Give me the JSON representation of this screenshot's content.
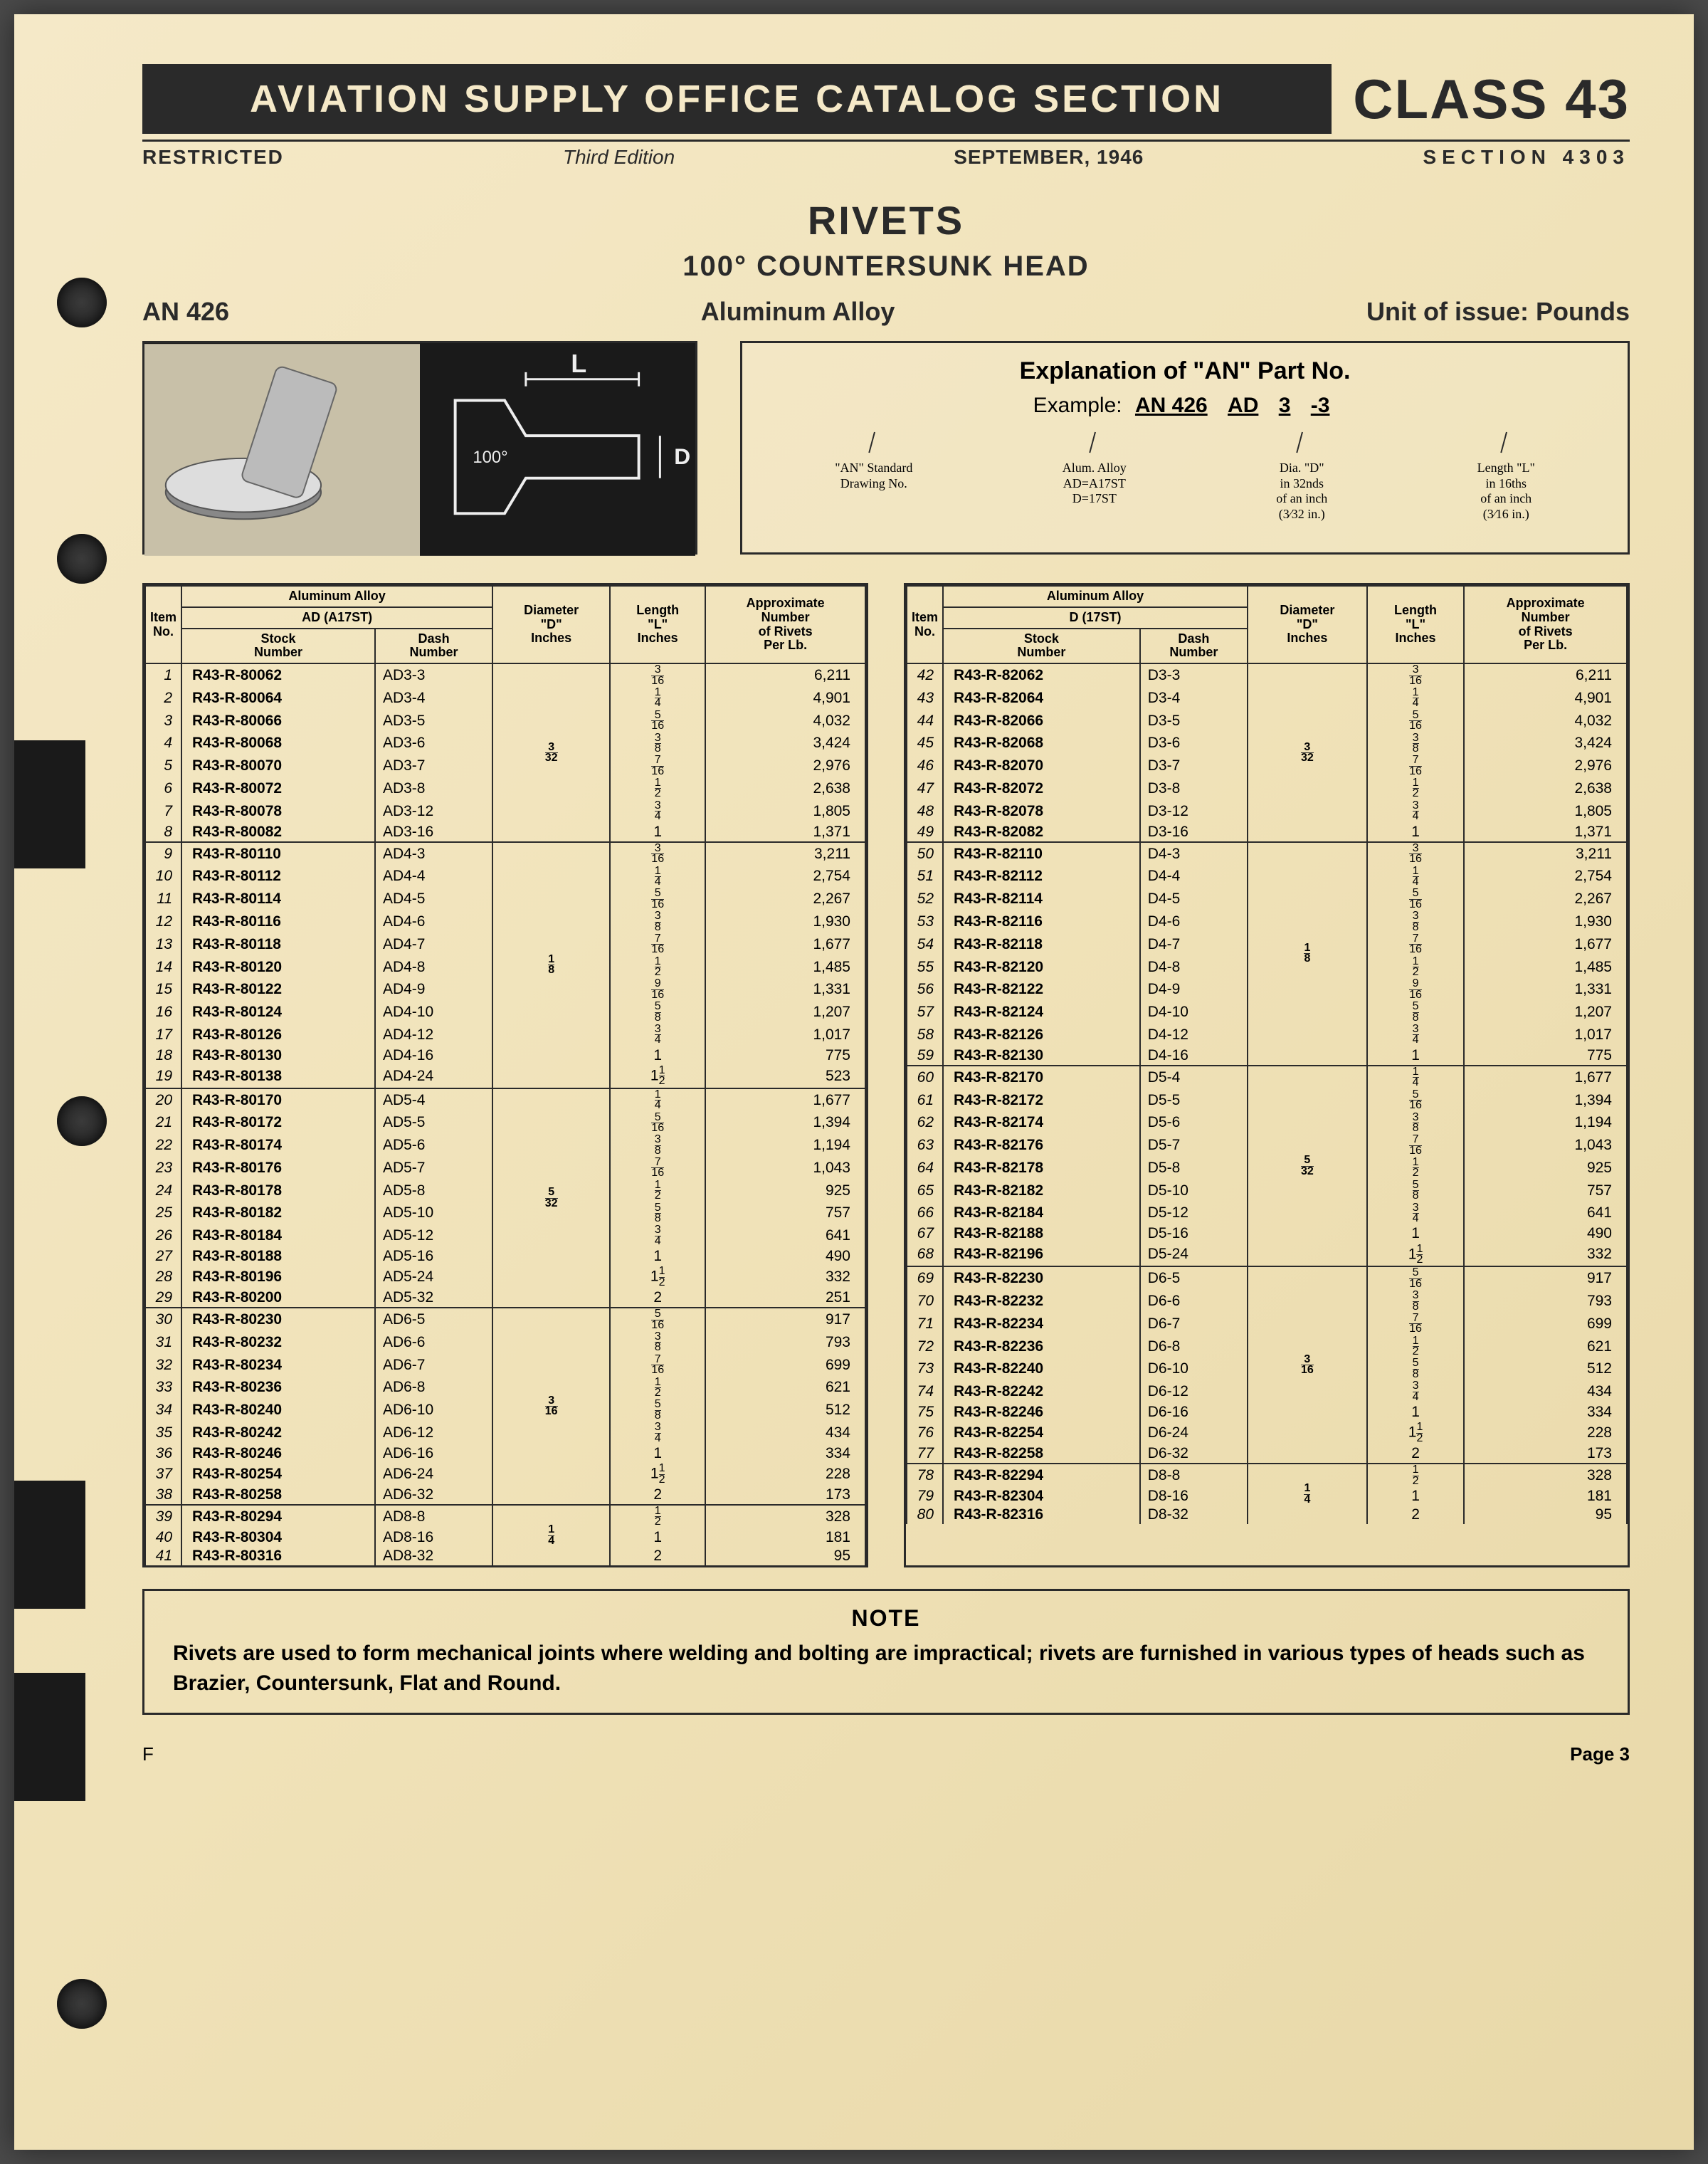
{
  "header": {
    "banner": "AVIATION  SUPPLY  OFFICE  CATALOG  SECTION",
    "class": "CLASS 43",
    "restricted": "RESTRICTED",
    "edition": "Third Edition",
    "date": "SEPTEMBER, 1946",
    "section": "SECTION 4303"
  },
  "title": {
    "main": "RIVETS",
    "sub": "100° COUNTERSUNK HEAD"
  },
  "info": {
    "an": "AN 426",
    "material": "Aluminum Alloy",
    "unit": "Unit of issue: Pounds"
  },
  "explain": {
    "title": "Explanation of \"AN\" Part No.",
    "example_label": "Example:",
    "parts": [
      "AN 426",
      "AD",
      "3",
      "-3"
    ],
    "desc": [
      "\"AN\" Standard\nDrawing No.",
      "Alum. Alloy\nAD=A17ST\nD=17ST",
      "Dia. \"D\"\nin 32nds\nof an inch\n(3⁄32 in.)",
      "Length \"L\"\nin 16ths\nof an inch\n(3⁄16 in.)"
    ]
  },
  "columns": {
    "item": "Item\nNo.",
    "alloy": "Aluminum Alloy",
    "alloy_left": "AD (A17ST)",
    "alloy_right": "D (17ST)",
    "stock": "Stock\nNumber",
    "dash": "Dash\nNumber",
    "dia": "Diameter\n\"D\"\nInches",
    "len": "Length\n\"L\"\nInches",
    "rivets": "Approximate\nNumber\nof Rivets\nPer Lb."
  },
  "left": [
    {
      "dia": "3/32",
      "rows": [
        {
          "i": "1",
          "s": "R43-R-80062",
          "d": "AD3-3",
          "l": "3/16",
          "r": "6,211"
        },
        {
          "i": "2",
          "s": "R43-R-80064",
          "d": "AD3-4",
          "l": "1/4",
          "r": "4,901"
        },
        {
          "i": "3",
          "s": "R43-R-80066",
          "d": "AD3-5",
          "l": "5/16",
          "r": "4,032"
        },
        {
          "i": "4",
          "s": "R43-R-80068",
          "d": "AD3-6",
          "l": "3/8",
          "r": "3,424"
        },
        {
          "i": "5",
          "s": "R43-R-80070",
          "d": "AD3-7",
          "l": "7/16",
          "r": "2,976"
        },
        {
          "i": "6",
          "s": "R43-R-80072",
          "d": "AD3-8",
          "l": "1/2",
          "r": "2,638"
        },
        {
          "i": "7",
          "s": "R43-R-80078",
          "d": "AD3-12",
          "l": "3/4",
          "r": "1,805"
        },
        {
          "i": "8",
          "s": "R43-R-80082",
          "d": "AD3-16",
          "l": "1",
          "r": "1,371"
        }
      ]
    },
    {
      "dia": "1/8",
      "rows": [
        {
          "i": "9",
          "s": "R43-R-80110",
          "d": "AD4-3",
          "l": "3/16",
          "r": "3,211"
        },
        {
          "i": "10",
          "s": "R43-R-80112",
          "d": "AD4-4",
          "l": "1/4",
          "r": "2,754"
        },
        {
          "i": "11",
          "s": "R43-R-80114",
          "d": "AD4-5",
          "l": "5/16",
          "r": "2,267"
        },
        {
          "i": "12",
          "s": "R43-R-80116",
          "d": "AD4-6",
          "l": "3/8",
          "r": "1,930"
        },
        {
          "i": "13",
          "s": "R43-R-80118",
          "d": "AD4-7",
          "l": "7/16",
          "r": "1,677"
        },
        {
          "i": "14",
          "s": "R43-R-80120",
          "d": "AD4-8",
          "l": "1/2",
          "r": "1,485"
        },
        {
          "i": "15",
          "s": "R43-R-80122",
          "d": "AD4-9",
          "l": "9/16",
          "r": "1,331"
        },
        {
          "i": "16",
          "s": "R43-R-80124",
          "d": "AD4-10",
          "l": "5/8",
          "r": "1,207"
        },
        {
          "i": "17",
          "s": "R43-R-80126",
          "d": "AD4-12",
          "l": "3/4",
          "r": "1,017"
        },
        {
          "i": "18",
          "s": "R43-R-80130",
          "d": "AD4-16",
          "l": "1",
          "r": "775"
        },
        {
          "i": "19",
          "s": "R43-R-80138",
          "d": "AD4-24",
          "l": "1 1/2",
          "r": "523"
        }
      ]
    },
    {
      "dia": "5/32",
      "rows": [
        {
          "i": "20",
          "s": "R43-R-80170",
          "d": "AD5-4",
          "l": "1/4",
          "r": "1,677"
        },
        {
          "i": "21",
          "s": "R43-R-80172",
          "d": "AD5-5",
          "l": "5/16",
          "r": "1,394"
        },
        {
          "i": "22",
          "s": "R43-R-80174",
          "d": "AD5-6",
          "l": "3/8",
          "r": "1,194"
        },
        {
          "i": "23",
          "s": "R43-R-80176",
          "d": "AD5-7",
          "l": "7/16",
          "r": "1,043"
        },
        {
          "i": "24",
          "s": "R43-R-80178",
          "d": "AD5-8",
          "l": "1/2",
          "r": "925"
        },
        {
          "i": "25",
          "s": "R43-R-80182",
          "d": "AD5-10",
          "l": "5/8",
          "r": "757"
        },
        {
          "i": "26",
          "s": "R43-R-80184",
          "d": "AD5-12",
          "l": "3/4",
          "r": "641"
        },
        {
          "i": "27",
          "s": "R43-R-80188",
          "d": "AD5-16",
          "l": "1",
          "r": "490"
        },
        {
          "i": "28",
          "s": "R43-R-80196",
          "d": "AD5-24",
          "l": "1 1/2",
          "r": "332"
        },
        {
          "i": "29",
          "s": "R43-R-80200",
          "d": "AD5-32",
          "l": "2",
          "r": "251"
        }
      ]
    },
    {
      "dia": "3/16",
      "rows": [
        {
          "i": "30",
          "s": "R43-R-80230",
          "d": "AD6-5",
          "l": "5/16",
          "r": "917"
        },
        {
          "i": "31",
          "s": "R43-R-80232",
          "d": "AD6-6",
          "l": "3/8",
          "r": "793"
        },
        {
          "i": "32",
          "s": "R43-R-80234",
          "d": "AD6-7",
          "l": "7/16",
          "r": "699"
        },
        {
          "i": "33",
          "s": "R43-R-80236",
          "d": "AD6-8",
          "l": "1/2",
          "r": "621"
        },
        {
          "i": "34",
          "s": "R43-R-80240",
          "d": "AD6-10",
          "l": "5/8",
          "r": "512"
        },
        {
          "i": "35",
          "s": "R43-R-80242",
          "d": "AD6-12",
          "l": "3/4",
          "r": "434"
        },
        {
          "i": "36",
          "s": "R43-R-80246",
          "d": "AD6-16",
          "l": "1",
          "r": "334"
        },
        {
          "i": "37",
          "s": "R43-R-80254",
          "d": "AD6-24",
          "l": "1 1/2",
          "r": "228"
        },
        {
          "i": "38",
          "s": "R43-R-80258",
          "d": "AD6-32",
          "l": "2",
          "r": "173"
        }
      ]
    },
    {
      "dia": "1/4",
      "rows": [
        {
          "i": "39",
          "s": "R43-R-80294",
          "d": "AD8-8",
          "l": "1/2",
          "r": "328"
        },
        {
          "i": "40",
          "s": "R43-R-80304",
          "d": "AD8-16",
          "l": "1",
          "r": "181"
        },
        {
          "i": "41",
          "s": "R43-R-80316",
          "d": "AD8-32",
          "l": "2",
          "r": "95"
        }
      ]
    }
  ],
  "right": [
    {
      "dia": "3/32",
      "rows": [
        {
          "i": "42",
          "s": "R43-R-82062",
          "d": "D3-3",
          "l": "3/16",
          "r": "6,211"
        },
        {
          "i": "43",
          "s": "R43-R-82064",
          "d": "D3-4",
          "l": "1/4",
          "r": "4,901"
        },
        {
          "i": "44",
          "s": "R43-R-82066",
          "d": "D3-5",
          "l": "5/16",
          "r": "4,032"
        },
        {
          "i": "45",
          "s": "R43-R-82068",
          "d": "D3-6",
          "l": "3/8",
          "r": "3,424"
        },
        {
          "i": "46",
          "s": "R43-R-82070",
          "d": "D3-7",
          "l": "7/16",
          "r": "2,976"
        },
        {
          "i": "47",
          "s": "R43-R-82072",
          "d": "D3-8",
          "l": "1/2",
          "r": "2,638"
        },
        {
          "i": "48",
          "s": "R43-R-82078",
          "d": "D3-12",
          "l": "3/4",
          "r": "1,805"
        },
        {
          "i": "49",
          "s": "R43-R-82082",
          "d": "D3-16",
          "l": "1",
          "r": "1,371"
        }
      ]
    },
    {
      "dia": "1/8",
      "rows": [
        {
          "i": "50",
          "s": "R43-R-82110",
          "d": "D4-3",
          "l": "3/16",
          "r": "3,211"
        },
        {
          "i": "51",
          "s": "R43-R-82112",
          "d": "D4-4",
          "l": "1/4",
          "r": "2,754"
        },
        {
          "i": "52",
          "s": "R43-R-82114",
          "d": "D4-5",
          "l": "5/16",
          "r": "2,267"
        },
        {
          "i": "53",
          "s": "R43-R-82116",
          "d": "D4-6",
          "l": "3/8",
          "r": "1,930"
        },
        {
          "i": "54",
          "s": "R43-R-82118",
          "d": "D4-7",
          "l": "7/16",
          "r": "1,677"
        },
        {
          "i": "55",
          "s": "R43-R-82120",
          "d": "D4-8",
          "l": "1/2",
          "r": "1,485"
        },
        {
          "i": "56",
          "s": "R43-R-82122",
          "d": "D4-9",
          "l": "9/16",
          "r": "1,331"
        },
        {
          "i": "57",
          "s": "R43-R-82124",
          "d": "D4-10",
          "l": "5/8",
          "r": "1,207"
        },
        {
          "i": "58",
          "s": "R43-R-82126",
          "d": "D4-12",
          "l": "3/4",
          "r": "1,017"
        },
        {
          "i": "59",
          "s": "R43-R-82130",
          "d": "D4-16",
          "l": "1",
          "r": "775"
        }
      ]
    },
    {
      "dia": "5/32",
      "rows": [
        {
          "i": "60",
          "s": "R43-R-82170",
          "d": "D5-4",
          "l": "1/4",
          "r": "1,677"
        },
        {
          "i": "61",
          "s": "R43-R-82172",
          "d": "D5-5",
          "l": "5/16",
          "r": "1,394"
        },
        {
          "i": "62",
          "s": "R43-R-82174",
          "d": "D5-6",
          "l": "3/8",
          "r": "1,194"
        },
        {
          "i": "63",
          "s": "R43-R-82176",
          "d": "D5-7",
          "l": "7/16",
          "r": "1,043"
        },
        {
          "i": "64",
          "s": "R43-R-82178",
          "d": "D5-8",
          "l": "1/2",
          "r": "925"
        },
        {
          "i": "65",
          "s": "R43-R-82182",
          "d": "D5-10",
          "l": "5/8",
          "r": "757"
        },
        {
          "i": "66",
          "s": "R43-R-82184",
          "d": "D5-12",
          "l": "3/4",
          "r": "641"
        },
        {
          "i": "67",
          "s": "R43-R-82188",
          "d": "D5-16",
          "l": "1",
          "r": "490"
        },
        {
          "i": "68",
          "s": "R43-R-82196",
          "d": "D5-24",
          "l": "1 1/2",
          "r": "332"
        }
      ]
    },
    {
      "dia": "3/16",
      "rows": [
        {
          "i": "69",
          "s": "R43-R-82230",
          "d": "D6-5",
          "l": "5/16",
          "r": "917"
        },
        {
          "i": "70",
          "s": "R43-R-82232",
          "d": "D6-6",
          "l": "3/8",
          "r": "793"
        },
        {
          "i": "71",
          "s": "R43-R-82234",
          "d": "D6-7",
          "l": "7/16",
          "r": "699"
        },
        {
          "i": "72",
          "s": "R43-R-82236",
          "d": "D6-8",
          "l": "1/2",
          "r": "621"
        },
        {
          "i": "73",
          "s": "R43-R-82240",
          "d": "D6-10",
          "l": "5/8",
          "r": "512"
        },
        {
          "i": "74",
          "s": "R43-R-82242",
          "d": "D6-12",
          "l": "3/4",
          "r": "434"
        },
        {
          "i": "75",
          "s": "R43-R-82246",
          "d": "D6-16",
          "l": "1",
          "r": "334"
        },
        {
          "i": "76",
          "s": "R43-R-82254",
          "d": "D6-24",
          "l": "1 1/2",
          "r": "228"
        },
        {
          "i": "77",
          "s": "R43-R-82258",
          "d": "D6-32",
          "l": "2",
          "r": "173"
        }
      ]
    },
    {
      "dia": "1/4",
      "rows": [
        {
          "i": "78",
          "s": "R43-R-82294",
          "d": "D8-8",
          "l": "1/2",
          "r": "328"
        },
        {
          "i": "79",
          "s": "R43-R-82304",
          "d": "D8-16",
          "l": "1",
          "r": "181"
        },
        {
          "i": "80",
          "s": "R43-R-82316",
          "d": "D8-32",
          "l": "2",
          "r": "95"
        }
      ]
    }
  ],
  "note": {
    "title": "NOTE",
    "text": "Rivets are used to form mechanical joints where welding and bolting are impractical; rivets are furnished in various types of heads such as Brazier, Countersunk, Flat and Round."
  },
  "footer": {
    "left": "F",
    "right": "Page 3"
  },
  "holes_y": [
    370,
    730,
    1520,
    2760
  ],
  "tabs_y": [
    1020,
    2060,
    2330
  ]
}
